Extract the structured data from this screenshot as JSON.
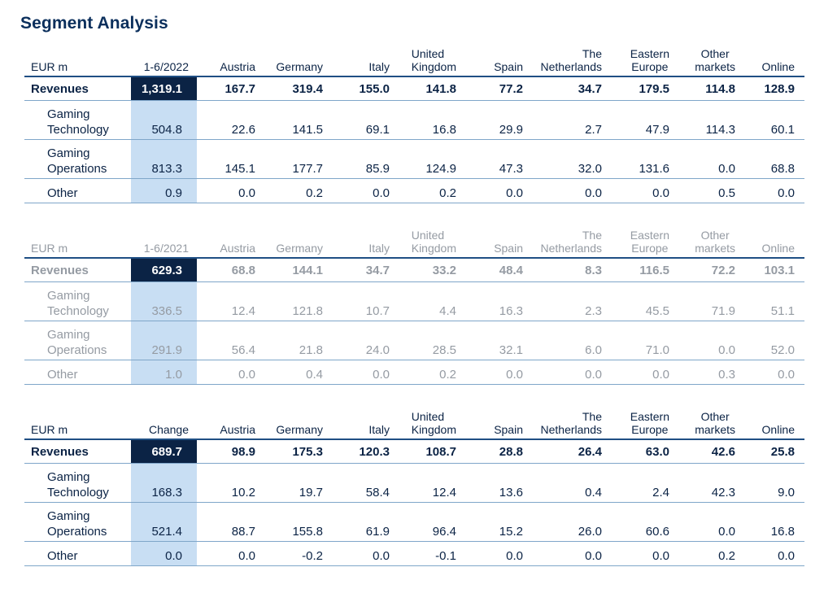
{
  "title": "Segment Analysis",
  "columns": [
    "Austria",
    "Germany",
    "Italy",
    "United Kingdom",
    "Spain",
    "The Netherlands",
    "Eastern Europe",
    "Other markets",
    "Online"
  ],
  "tables": [
    {
      "unit": "EUR m",
      "period": "1-6/2022",
      "headers": {
        "austria": "Austria",
        "germany": "Germany",
        "italy": "Italy",
        "uk": [
          "United",
          "Kingdom"
        ],
        "spain": "Spain",
        "nl": [
          "The",
          "Netherlands"
        ],
        "ee": [
          "Eastern",
          "Europe"
        ],
        "other": [
          "Other",
          "markets"
        ],
        "online": "Online"
      },
      "rows": [
        {
          "label": [
            "Revenues"
          ],
          "values": [
            "1,319.1",
            "167.7",
            "319.4",
            "155.0",
            "141.8",
            "77.2",
            "34.7",
            "179.5",
            "114.8",
            "128.9"
          ]
        },
        {
          "label": [
            "Gaming",
            "Technology"
          ],
          "values": [
            "504.8",
            "22.6",
            "141.5",
            "69.1",
            "16.8",
            "29.9",
            "2.7",
            "47.9",
            "114.3",
            "60.1"
          ]
        },
        {
          "label": [
            "Gaming",
            "Operations"
          ],
          "values": [
            "813.3",
            "145.1",
            "177.7",
            "85.9",
            "124.9",
            "47.3",
            "32.0",
            "131.6",
            "0.0",
            "68.8"
          ]
        },
        {
          "label": [
            "Other"
          ],
          "values": [
            "0.9",
            "0.0",
            "0.2",
            "0.0",
            "0.2",
            "0.0",
            "0.0",
            "0.0",
            "0.5",
            "0.0"
          ]
        }
      ]
    },
    {
      "unit": "EUR m",
      "period": "1-6/2021",
      "headers": {
        "austria": "Austria",
        "germany": "Germany",
        "italy": "Italy",
        "uk": [
          "United",
          "Kingdom"
        ],
        "spain": "Spain",
        "nl": [
          "The",
          "Netherlands"
        ],
        "ee": [
          "Eastern",
          "Europe"
        ],
        "other": [
          "Other",
          "markets"
        ],
        "online": "Online"
      },
      "rows": [
        {
          "label": [
            "Revenues"
          ],
          "values": [
            "629.3",
            "68.8",
            "144.1",
            "34.7",
            "33.2",
            "48.4",
            "8.3",
            "116.5",
            "72.2",
            "103.1"
          ]
        },
        {
          "label": [
            "Gaming",
            "Technology"
          ],
          "values": [
            "336.5",
            "12.4",
            "121.8",
            "10.7",
            "4.4",
            "16.3",
            "2.3",
            "45.5",
            "71.9",
            "51.1"
          ]
        },
        {
          "label": [
            "Gaming",
            "Operations"
          ],
          "values": [
            "291.9",
            "56.4",
            "21.8",
            "24.0",
            "28.5",
            "32.1",
            "6.0",
            "71.0",
            "0.0",
            "52.0"
          ]
        },
        {
          "label": [
            "Other"
          ],
          "values": [
            "1.0",
            "0.0",
            "0.4",
            "0.0",
            "0.2",
            "0.0",
            "0.0",
            "0.0",
            "0.3",
            "0.0"
          ]
        }
      ]
    },
    {
      "unit": "EUR m",
      "period": "Change",
      "headers": {
        "austria": "Austria",
        "germany": "Germany",
        "italy": "Italy",
        "uk": [
          "United",
          "Kingdom"
        ],
        "spain": "Spain",
        "nl": [
          "The",
          "Netherlands"
        ],
        "ee": [
          "Eastern",
          "Europe"
        ],
        "other": [
          "Other",
          "markets"
        ],
        "online": "Online"
      },
      "rows": [
        {
          "label": [
            "Revenues"
          ],
          "values": [
            "689.7",
            "98.9",
            "175.3",
            "120.3",
            "108.7",
            "28.8",
            "26.4",
            "63.0",
            "42.6",
            "25.8"
          ]
        },
        {
          "label": [
            "Gaming",
            "Technology"
          ],
          "values": [
            "168.3",
            "10.2",
            "19.7",
            "58.4",
            "12.4",
            "13.6",
            "0.4",
            "2.4",
            "42.3",
            "9.0"
          ]
        },
        {
          "label": [
            "Gaming",
            "Operations"
          ],
          "values": [
            "521.4",
            "88.7",
            "155.8",
            "61.9",
            "96.4",
            "15.2",
            "26.0",
            "60.6",
            "0.0",
            "16.8"
          ]
        },
        {
          "label": [
            "Other"
          ],
          "values": [
            "0.0",
            "0.0",
            "-0.2",
            "0.0",
            "-0.1",
            "0.0",
            "0.0",
            "0.0",
            "0.2",
            "0.0"
          ]
        }
      ]
    }
  ],
  "colors": {
    "navy": "#0b2345",
    "highlight": "#c8def3",
    "muted": "#959ba3",
    "rule": "#7fa6c9"
  }
}
